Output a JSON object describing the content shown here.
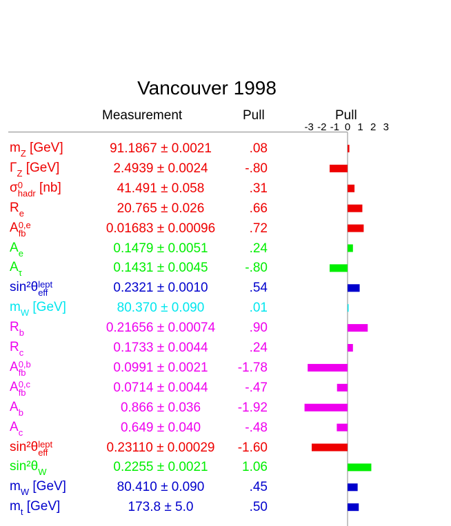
{
  "title": "Vancouver 1998",
  "headers": {
    "measurement": "Measurement",
    "pull": "Pull",
    "pull_axis": "Pull"
  },
  "colors": {
    "red": "#ee0000",
    "green": "#00ee00",
    "blue": "#0000cc",
    "cyan": "#00e6ee",
    "magenta": "#ee00ee"
  },
  "chart_data": {
    "type": "bar",
    "orientation": "horizontal",
    "title": "Vancouver 1998",
    "xlabel": "Pull",
    "xlim": [
      -3,
      3
    ],
    "ticks": [
      "-3",
      "-2",
      "-1",
      "0",
      "1",
      "2",
      "3"
    ],
    "rows": [
      {
        "name": "m",
        "sub": "Z",
        "sup": "",
        "suffix": " [GeV]",
        "measurement": "91.1867 ± 0.0021",
        "pull_text": ".08",
        "pull": 0.08,
        "color": "red"
      },
      {
        "name": "Γ",
        "sub": "Z",
        "sup": "",
        "suffix": " [GeV]",
        "measurement": "2.4939 ± 0.0024",
        "pull_text": "-.80",
        "pull": -0.8,
        "color": "red"
      },
      {
        "name": "σ",
        "sub": "hadr",
        "sup": "0",
        "suffix": " [nb]",
        "measurement": "41.491 ± 0.058",
        "pull_text": ".31",
        "pull": 0.31,
        "color": "red"
      },
      {
        "name": "R",
        "sub": "e",
        "sup": "",
        "suffix": "",
        "measurement": "20.765 ± 0.026",
        "pull_text": ".66",
        "pull": 0.66,
        "color": "red"
      },
      {
        "name": "A",
        "sub": "fb",
        "sup": "0,e",
        "suffix": "",
        "measurement": "0.01683 ± 0.00096",
        "pull_text": ".72",
        "pull": 0.72,
        "color": "red"
      },
      {
        "name": "A",
        "sub": "e",
        "sup": "",
        "suffix": "",
        "measurement": "0.1479 ± 0.0051",
        "pull_text": ".24",
        "pull": 0.24,
        "color": "green"
      },
      {
        "name": "A",
        "sub": "τ",
        "sup": "",
        "suffix": "",
        "measurement": "0.1431 ± 0.0045",
        "pull_text": "-.80",
        "pull": -0.8,
        "color": "green"
      },
      {
        "name": "sin²θ",
        "sub": "eff",
        "sup": "lept",
        "suffix": "",
        "measurement": "0.2321 ± 0.0010",
        "pull_text": ".54",
        "pull": 0.54,
        "color": "blue"
      },
      {
        "name": "m",
        "sub": "W",
        "sup": "",
        "suffix": " [GeV]",
        "measurement": "80.370 ± 0.090",
        "pull_text": ".01",
        "pull": 0.01,
        "color": "cyan"
      },
      {
        "name": "R",
        "sub": "b",
        "sup": "",
        "suffix": "",
        "measurement": "0.21656 ± 0.00074",
        "pull_text": ".90",
        "pull": 0.9,
        "color": "magenta"
      },
      {
        "name": "R",
        "sub": "c",
        "sup": "",
        "suffix": "",
        "measurement": "0.1733 ± 0.0044",
        "pull_text": ".24",
        "pull": 0.24,
        "color": "magenta"
      },
      {
        "name": "A",
        "sub": "fb",
        "sup": "0,b",
        "suffix": "",
        "measurement": "0.0991 ± 0.0021",
        "pull_text": "-1.78",
        "pull": -1.78,
        "color": "magenta"
      },
      {
        "name": "A",
        "sub": "fb",
        "sup": "0,c",
        "suffix": "",
        "measurement": "0.0714 ± 0.0044",
        "pull_text": "-.47",
        "pull": -0.47,
        "color": "magenta"
      },
      {
        "name": "A",
        "sub": "b",
        "sup": "",
        "suffix": "",
        "measurement": "0.866 ± 0.036",
        "pull_text": "-1.92",
        "pull": -1.92,
        "color": "magenta"
      },
      {
        "name": "A",
        "sub": "c",
        "sup": "",
        "suffix": "",
        "measurement": "0.649 ± 0.040",
        "pull_text": "-.48",
        "pull": -0.48,
        "color": "magenta"
      },
      {
        "name": "sin²θ",
        "sub": "eff",
        "sup": "lept",
        "suffix": "",
        "measurement": "0.23110 ± 0.00029",
        "pull_text": "-1.60",
        "pull": -1.6,
        "color": "red"
      },
      {
        "name": "sin²θ",
        "sub": "W",
        "sup": "",
        "suffix": "",
        "measurement": "0.2255 ± 0.0021",
        "pull_text": "1.06",
        "pull": 1.06,
        "color": "green"
      },
      {
        "name": "m",
        "sub": "W",
        "sup": "",
        "suffix": " [GeV]",
        "measurement": "80.410 ± 0.090",
        "pull_text": ".45",
        "pull": 0.45,
        "color": "blue"
      },
      {
        "name": "m",
        "sub": "t",
        "sup": "",
        "suffix": " [GeV]",
        "measurement": "173.8 ± 5.0",
        "pull_text": ".50",
        "pull": 0.5,
        "color": "blue"
      }
    ]
  }
}
